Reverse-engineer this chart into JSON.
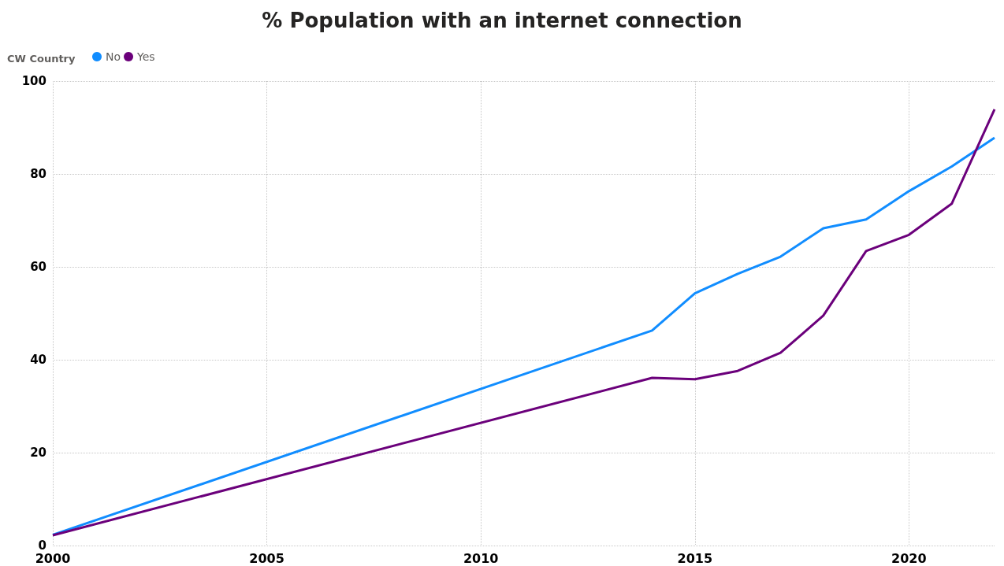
{
  "chart_data": {
    "type": "line",
    "title": "% Population with an internet connection",
    "legend_title": "CW Country",
    "legend": "top left",
    "grid": true,
    "marker": "none",
    "line_style": "solid",
    "x": [
      2000,
      2014,
      2015,
      2016,
      2017,
      2018,
      2019,
      2020,
      2021,
      2022
    ],
    "xlim": [
      2000,
      2022
    ],
    "xticks": [
      2000,
      2005,
      2010,
      2015,
      2020
    ],
    "ylim": [
      0,
      100
    ],
    "yticks": [
      0,
      20,
      40,
      60,
      80,
      100
    ],
    "series": [
      {
        "name": "No",
        "color": "#118dff",
        "values": [
          2.3,
          46.3,
          54.3,
          58.5,
          62.2,
          68.3,
          70.2,
          76.3,
          81.6,
          87.8
        ]
      },
      {
        "name": "Yes",
        "color": "#6b007b",
        "values": [
          2.2,
          36.1,
          35.8,
          37.6,
          41.5,
          49.5,
          63.4,
          66.9,
          73.6,
          93.9
        ]
      }
    ]
  }
}
